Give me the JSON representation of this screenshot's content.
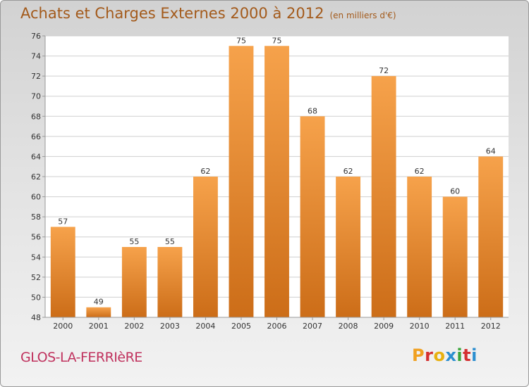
{
  "chart_data": {
    "type": "bar",
    "title": "Achats et Charges Externes 2000 à 2012",
    "subtitle": "(en milliers d'€)",
    "categories": [
      "2000",
      "2001",
      "2002",
      "2003",
      "2004",
      "2005",
      "2006",
      "2007",
      "2008",
      "2009",
      "2010",
      "2011",
      "2012"
    ],
    "values": [
      57,
      49,
      55,
      55,
      62,
      75,
      75,
      68,
      62,
      72,
      62,
      60,
      64
    ],
    "ylim": [
      48,
      76
    ],
    "yticks": [
      48,
      50,
      52,
      54,
      56,
      58,
      60,
      62,
      64,
      66,
      68,
      70,
      72,
      74,
      76
    ],
    "grid": true,
    "legend": "none"
  },
  "commune": "GLOS-LA-FERRIèRE",
  "logo": {
    "text": "Proxiti",
    "colors": [
      "#f0a020",
      "#d43030",
      "#e8b010",
      "#2d8fd0",
      "#3aa53a",
      "#d43030",
      "#2d8fd0"
    ]
  },
  "colors": {
    "title": "#a35a1b",
    "commune": "#c0325e",
    "bar_top": "#f6a24b",
    "bar_bottom": "#cc6d18",
    "grid": "#cfcfcf"
  }
}
